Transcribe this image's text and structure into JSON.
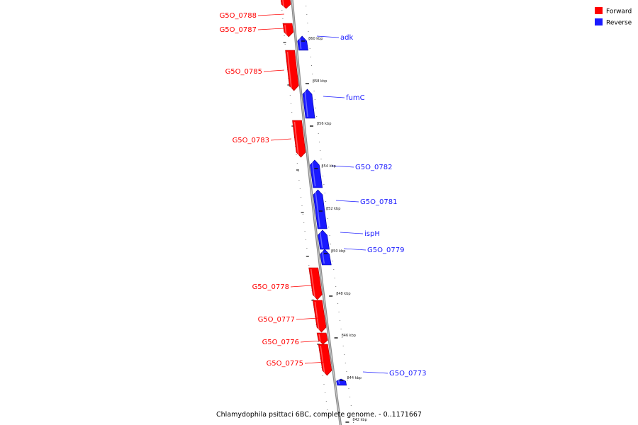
{
  "legend": {
    "forward_label": "Forward",
    "reverse_label": "Reverse",
    "forward_color": "#ff0000",
    "reverse_color": "#1a1aff"
  },
  "caption": "Chlamydophila psittaci 6BC, complete genome. - 0..1171667",
  "genes": [
    {
      "name": "G5O_0788",
      "strand": "forward"
    },
    {
      "name": "G5O_0787",
      "strand": "forward"
    },
    {
      "name": "adk",
      "strand": "reverse"
    },
    {
      "name": "G5O_0785",
      "strand": "forward"
    },
    {
      "name": "fumC",
      "strand": "reverse"
    },
    {
      "name": "G5O_0783",
      "strand": "forward"
    },
    {
      "name": "G5O_0782",
      "strand": "reverse"
    },
    {
      "name": "G5O_0781",
      "strand": "reverse"
    },
    {
      "name": "ispH",
      "strand": "reverse"
    },
    {
      "name": "G5O_0779",
      "strand": "reverse"
    },
    {
      "name": "G5O_0778",
      "strand": "forward"
    },
    {
      "name": "G5O_0777",
      "strand": "forward"
    },
    {
      "name": "G5O_0776",
      "strand": "forward"
    },
    {
      "name": "G5O_0775",
      "strand": "forward"
    },
    {
      "name": "G5O_0773",
      "strand": "reverse"
    }
  ],
  "ticks": [
    "860 kbp",
    "858 kbp",
    "856 kbp",
    "854 kbp",
    "852 kbp",
    "850 kbp",
    "848 kbp",
    "846 kbp",
    "844 kbp",
    "842 kbp"
  ]
}
